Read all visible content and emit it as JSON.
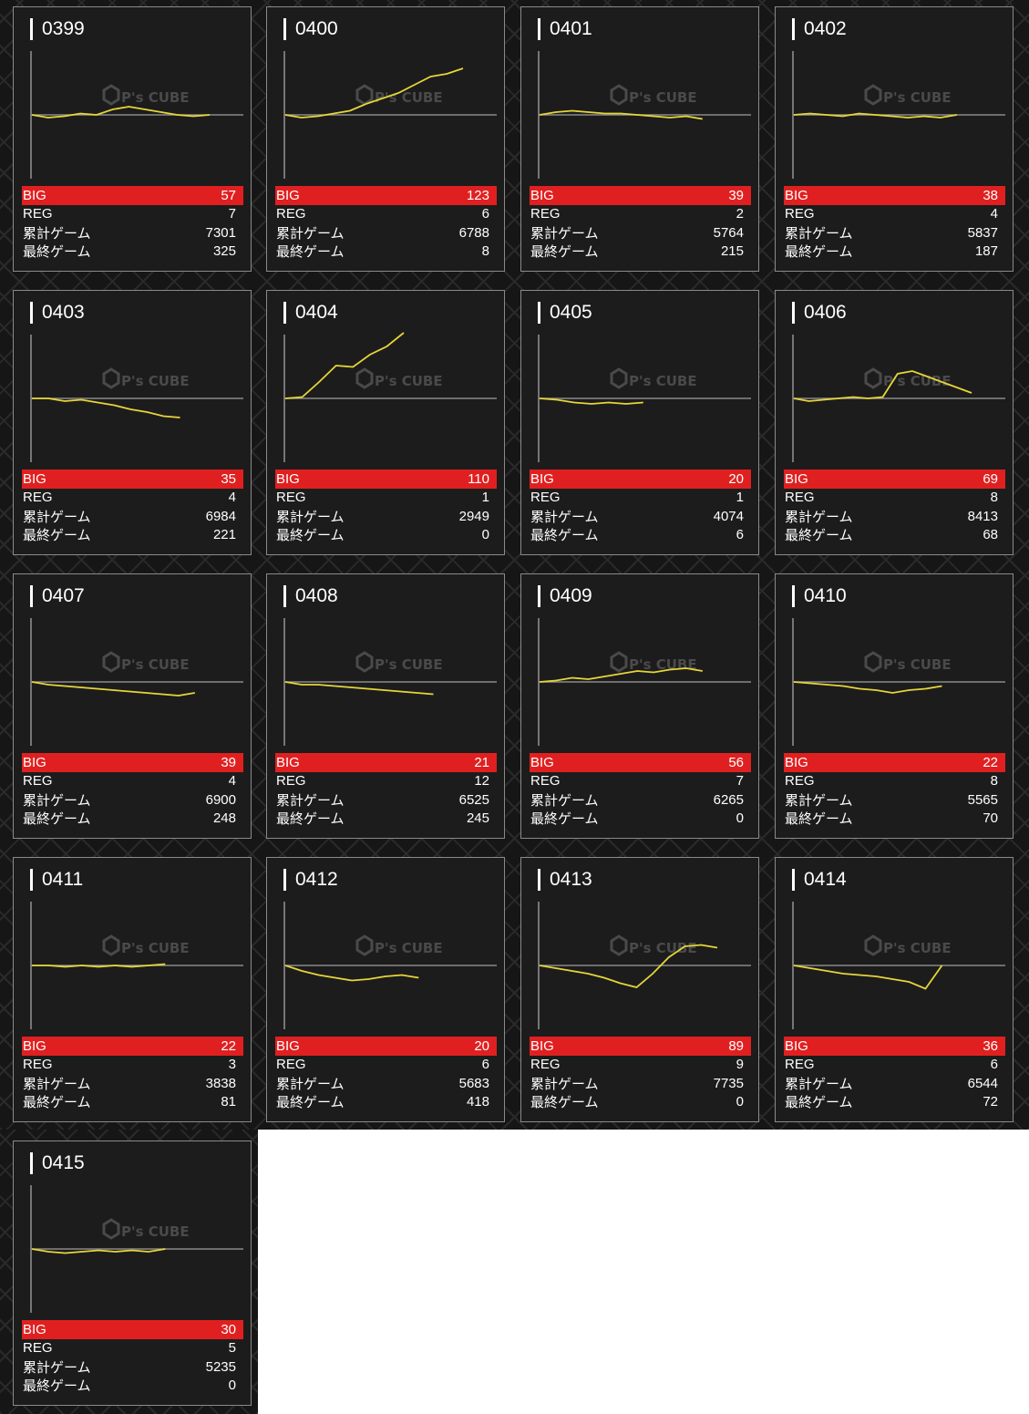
{
  "labels": {
    "big": "BIG",
    "reg": "REG",
    "total_games": "累計ゲーム",
    "last_game": "最終ゲーム"
  },
  "watermark": {
    "brand": "P's CUBE"
  },
  "colors": {
    "accent_bar": "#e02020",
    "graph_line": "#e6d53a",
    "card_bg": "#1c1c1c"
  },
  "machines": [
    {
      "id": "0399",
      "big": "57",
      "reg": "7",
      "total_games": "7301",
      "last_game": "325",
      "trend": [
        0,
        -2,
        -1,
        1,
        0,
        4,
        6,
        4,
        2,
        0,
        -1,
        0
      ]
    },
    {
      "id": "0400",
      "big": "123",
      "reg": "6",
      "total_games": "6788",
      "last_game": "8",
      "trend": [
        0,
        -2,
        -1,
        1,
        3,
        8,
        12,
        16,
        22,
        28,
        30,
        34
      ]
    },
    {
      "id": "0401",
      "big": "39",
      "reg": "2",
      "total_games": "5764",
      "last_game": "215",
      "trend": [
        0,
        2,
        3,
        2,
        1,
        1,
        0,
        -1,
        -2,
        -1,
        -3
      ]
    },
    {
      "id": "0402",
      "big": "38",
      "reg": "4",
      "total_games": "5837",
      "last_game": "187",
      "trend": [
        0,
        1,
        0,
        -1,
        1,
        0,
        -1,
        -2,
        -1,
        -2,
        0
      ]
    },
    {
      "id": "0403",
      "big": "35",
      "reg": "4",
      "total_games": "6984",
      "last_game": "221",
      "trend": [
        0,
        0,
        -2,
        -1,
        -3,
        -5,
        -8,
        -10,
        -13,
        -14
      ]
    },
    {
      "id": "0404",
      "big": "110",
      "reg": "1",
      "total_games": "2949",
      "last_game": "0",
      "trend": [
        0,
        1,
        12,
        24,
        23,
        32,
        38,
        48
      ]
    },
    {
      "id": "0405",
      "big": "20",
      "reg": "1",
      "total_games": "4074",
      "last_game": "6",
      "trend": [
        0,
        -1,
        -3,
        -4,
        -3,
        -4,
        -3
      ]
    },
    {
      "id": "0406",
      "big": "69",
      "reg": "8",
      "total_games": "8413",
      "last_game": "68",
      "trend": [
        0,
        -2,
        -1,
        0,
        1,
        0,
        1,
        18,
        20,
        16,
        12,
        8,
        4
      ]
    },
    {
      "id": "0407",
      "big": "39",
      "reg": "4",
      "total_games": "6900",
      "last_game": "248",
      "trend": [
        0,
        -2,
        -3,
        -4,
        -5,
        -6,
        -7,
        -8,
        -9,
        -10,
        -8
      ]
    },
    {
      "id": "0408",
      "big": "21",
      "reg": "12",
      "total_games": "6525",
      "last_game": "245",
      "trend": [
        0,
        -2,
        -2,
        -3,
        -4,
        -5,
        -6,
        -7,
        -8,
        -9
      ]
    },
    {
      "id": "0409",
      "big": "56",
      "reg": "7",
      "total_games": "6265",
      "last_game": "0",
      "trend": [
        0,
        1,
        3,
        2,
        4,
        6,
        8,
        7,
        9,
        10,
        8
      ]
    },
    {
      "id": "0410",
      "big": "22",
      "reg": "8",
      "total_games": "5565",
      "last_game": "70",
      "trend": [
        0,
        -1,
        -2,
        -3,
        -5,
        -6,
        -8,
        -6,
        -5,
        -3
      ]
    },
    {
      "id": "0411",
      "big": "22",
      "reg": "3",
      "total_games": "3838",
      "last_game": "81",
      "trend": [
        0,
        0,
        -1,
        0,
        -1,
        0,
        -1,
        0,
        1
      ]
    },
    {
      "id": "0412",
      "big": "20",
      "reg": "6",
      "total_games": "5683",
      "last_game": "418",
      "trend": [
        0,
        -4,
        -7,
        -9,
        -11,
        -10,
        -8,
        -7,
        -9
      ]
    },
    {
      "id": "0413",
      "big": "89",
      "reg": "9",
      "total_games": "7735",
      "last_game": "0",
      "trend": [
        0,
        -2,
        -4,
        -6,
        -9,
        -13,
        -16,
        -6,
        6,
        14,
        15,
        13
      ]
    },
    {
      "id": "0414",
      "big": "36",
      "reg": "6",
      "total_games": "6544",
      "last_game": "72",
      "trend": [
        0,
        -2,
        -4,
        -6,
        -7,
        -8,
        -10,
        -12,
        -17,
        0
      ]
    },
    {
      "id": "0415",
      "big": "30",
      "reg": "5",
      "total_games": "5235",
      "last_game": "0",
      "trend": [
        0,
        -2,
        -3,
        -2,
        -1,
        -2,
        -1,
        -2,
        0
      ]
    }
  ]
}
